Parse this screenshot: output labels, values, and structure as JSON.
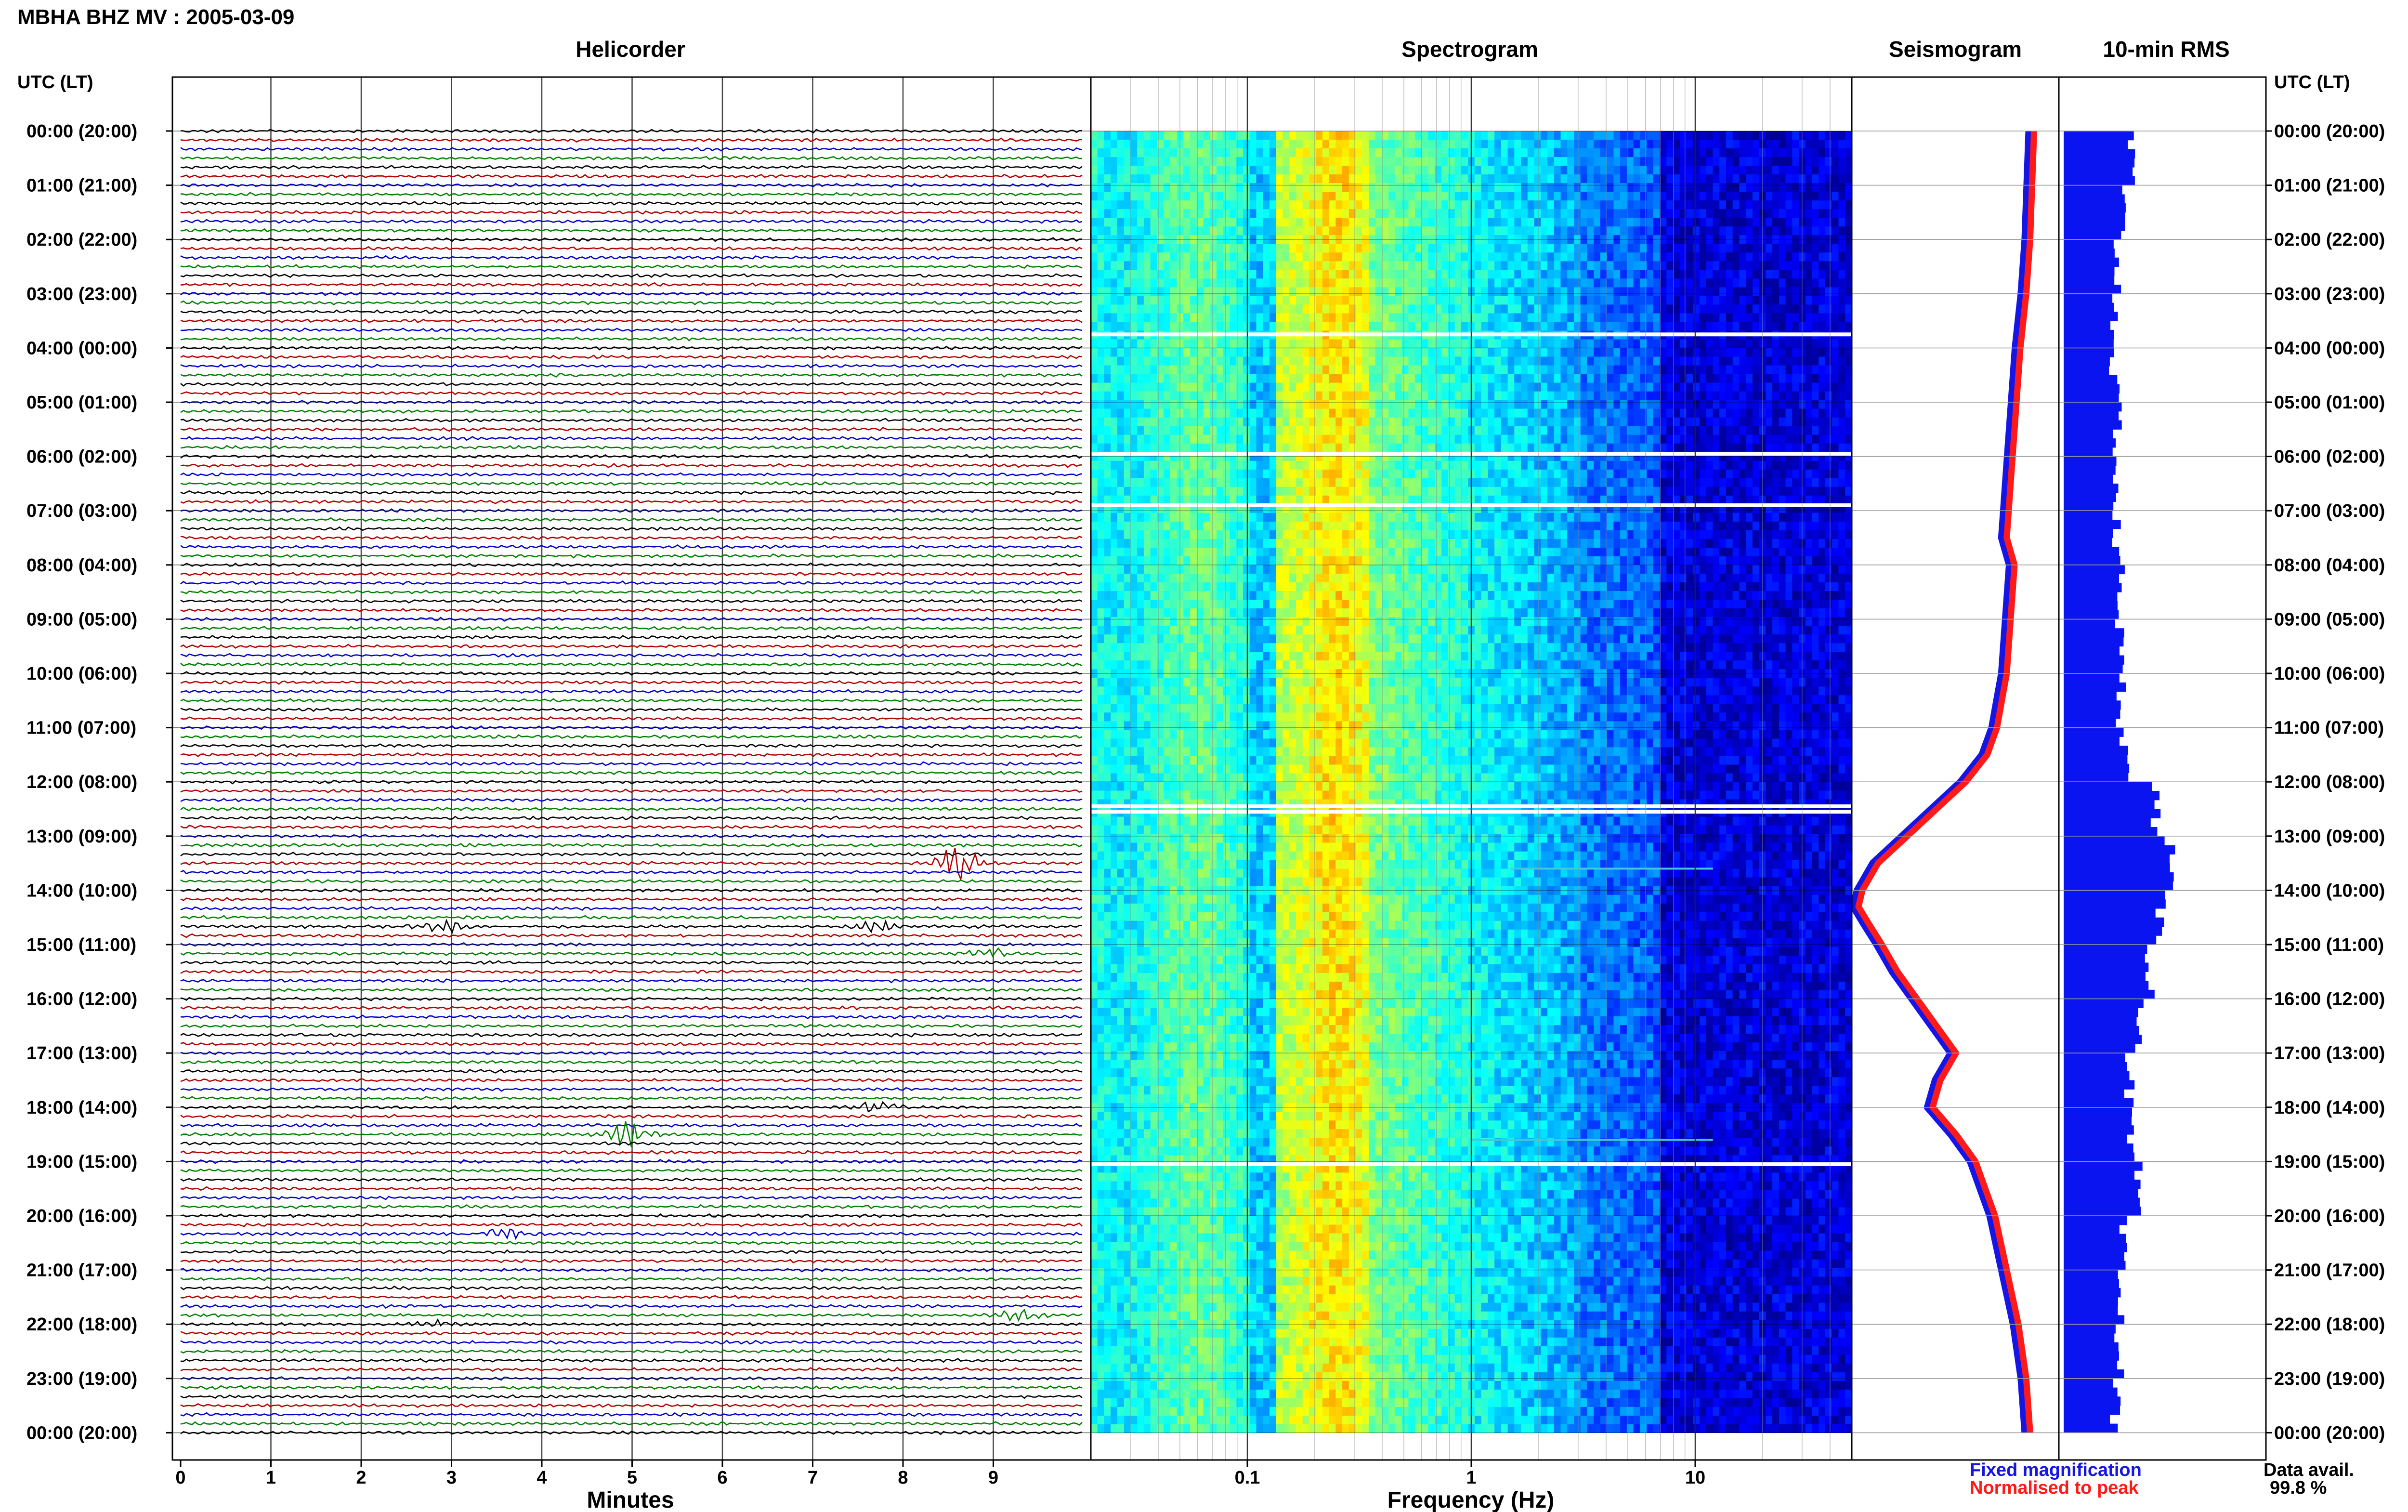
{
  "header": {
    "title": "MBHA BHZ MV : 2005-03-09"
  },
  "panels": {
    "helicorder": "Helicorder",
    "spectrogram": "Spectrogram",
    "seismogram": "Seismogram",
    "rms": "10-min RMS"
  },
  "axes": {
    "left_header": "UTC (LT)",
    "right_header": "UTC (LT)",
    "minutes_label": "Minutes",
    "frequency_label": "Frequency (Hz)",
    "minutes_ticks": [
      "0",
      "1",
      "2",
      "3",
      "4",
      "5",
      "6",
      "7",
      "8",
      "9"
    ],
    "frequency_ticks": [
      "0.1",
      "1",
      "10"
    ],
    "time_labels": [
      "00:00 (20:00)",
      "01:00 (21:00)",
      "02:00 (22:00)",
      "03:00 (23:00)",
      "04:00 (00:00)",
      "05:00 (01:00)",
      "06:00 (02:00)",
      "07:00 (03:00)",
      "08:00 (04:00)",
      "09:00 (05:00)",
      "10:00 (06:00)",
      "11:00 (07:00)",
      "12:00 (08:00)",
      "13:00 (09:00)",
      "14:00 (10:00)",
      "15:00 (11:00)",
      "16:00 (12:00)",
      "17:00 (13:00)",
      "18:00 (14:00)",
      "19:00 (15:00)",
      "20:00 (16:00)",
      "21:00 (17:00)",
      "22:00 (18:00)",
      "23:00 (19:00)",
      "00:00 (20:00)"
    ]
  },
  "legend": {
    "fixed": "Fixed magnification",
    "normalised": "Normalised to peak",
    "fixed_color": "#1515e6",
    "normalised_color": "#ff1a1a"
  },
  "availability": {
    "label": "Data avail.",
    "value": "99.8 %"
  },
  "chart_data": [
    {
      "type": "line",
      "name": "helicorder",
      "x_range_minutes": [
        0,
        10
      ],
      "rows_per_hour": 6,
      "trace_colors": [
        "#000000",
        "#b00000",
        "#0000c8",
        "#008000"
      ],
      "events": [
        {
          "hour": 13,
          "row": 3,
          "minute": 8.6,
          "amp": 2.2
        },
        {
          "hour": 14,
          "row": 4,
          "minute": 2.9,
          "amp": 0.7
        },
        {
          "hour": 14,
          "row": 4,
          "minute": 7.7,
          "amp": 0.6
        },
        {
          "hour": 15,
          "row": 1,
          "minute": 9.0,
          "amp": 0.6
        },
        {
          "hour": 18,
          "row": 3,
          "minute": 5.0,
          "amp": 1.9
        },
        {
          "hour": 18,
          "row": 0,
          "minute": 7.7,
          "amp": 0.6
        },
        {
          "hour": 20,
          "row": 2,
          "minute": 3.6,
          "amp": 0.7
        },
        {
          "hour": 21,
          "row": 5,
          "minute": 9.3,
          "amp": 0.6
        },
        {
          "hour": 22,
          "row": 0,
          "minute": 2.8,
          "amp": 0.5
        }
      ]
    },
    {
      "type": "heatmap",
      "name": "spectrogram",
      "x_scale": "log",
      "freq_range_hz": [
        0.02,
        50
      ],
      "gaps_hours": [
        3.75,
        5.95,
        6.9,
        12.45,
        12.55,
        19.05
      ],
      "tremor_lines": [
        {
          "hour": 13.6,
          "f0": 1.5,
          "f1": 12
        },
        {
          "hour": 18.6,
          "f0": 1.0,
          "f1": 12
        }
      ]
    },
    {
      "type": "line",
      "name": "seismogram",
      "x": [
        0,
        1,
        2,
        3,
        4,
        5,
        6,
        7,
        7.5,
        8,
        9,
        10,
        11,
        11.5,
        12,
        12.5,
        13,
        13.5,
        14,
        14.3,
        14.6,
        15,
        15.5,
        16,
        16.5,
        17,
        17.5,
        18,
        18.5,
        19,
        20,
        21,
        22,
        23,
        24
      ],
      "y": [
        0.9,
        0.89,
        0.88,
        0.86,
        0.83,
        0.81,
        0.79,
        0.77,
        0.76,
        0.8,
        0.78,
        0.76,
        0.71,
        0.66,
        0.55,
        0.4,
        0.25,
        0.1,
        0.02,
        0.0,
        0.05,
        0.12,
        0.2,
        0.3,
        0.4,
        0.5,
        0.42,
        0.38,
        0.5,
        0.6,
        0.7,
        0.76,
        0.82,
        0.86,
        0.88
      ]
    },
    {
      "type": "bar",
      "name": "rms",
      "x_range": [
        0,
        1
      ],
      "hourly_values": [
        0.35,
        0.3,
        0.28,
        0.27,
        0.26,
        0.28,
        0.27,
        0.27,
        0.3,
        0.29,
        0.3,
        0.32,
        0.48,
        0.55,
        0.5,
        0.45,
        0.4,
        0.34,
        0.34,
        0.38,
        0.3,
        0.29,
        0.29,
        0.27
      ]
    }
  ]
}
